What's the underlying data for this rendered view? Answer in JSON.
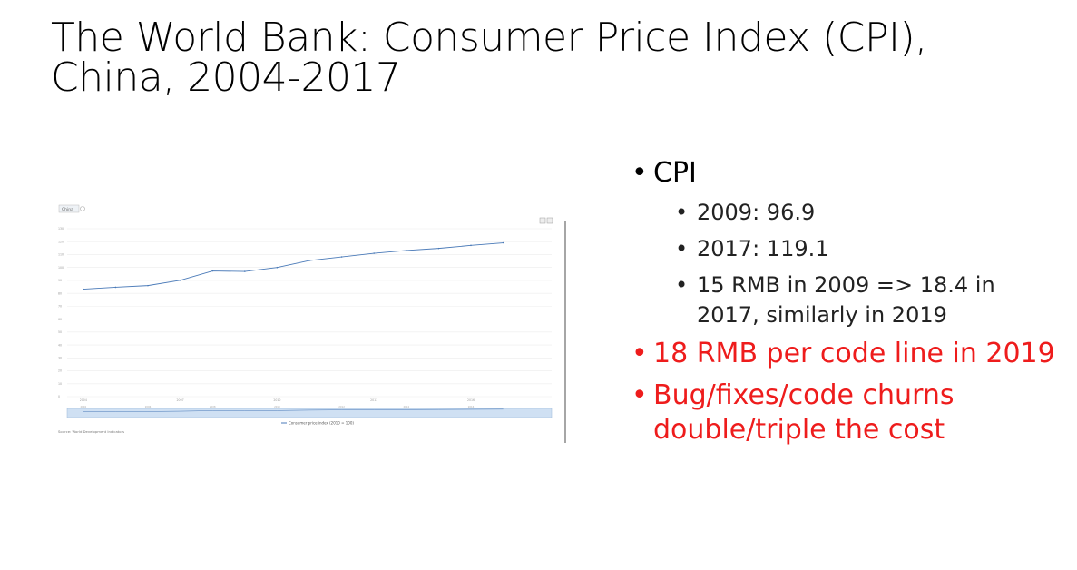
{
  "slide": {
    "title": "The World Bank: Consumer Price Index (CPI), China, 2004-2017"
  },
  "bullets": {
    "cpi": "CPI",
    "sub": [
      "2009: 96.9",
      "2017: 119.1",
      "15 RMB in 2009 => 18.4 in 2017, similarly in 2019"
    ],
    "cost_per_line": "18 RMB per code line in 2019",
    "bugfix_cost": "Bug/fixes/code churns double/triple the cost"
  },
  "colors": {
    "accent_red": "#ee1c1c",
    "series_line": "#4a7ab8",
    "navigator_fill": "#cfe0f3"
  },
  "chart_data": {
    "type": "line",
    "title": "",
    "xlabel": "",
    "ylabel": "",
    "x": [
      2004,
      2005,
      2006,
      2007,
      2008,
      2009,
      2010,
      2011,
      2012,
      2013,
      2014,
      2015,
      2016,
      2017
    ],
    "series": [
      {
        "name": "Consumer price index (2010 = 100)",
        "values": [
          83.2,
          84.7,
          86.0,
          90.1,
          97.3,
          96.9,
          100.0,
          105.4,
          108.2,
          111.0,
          113.2,
          114.8,
          117.1,
          119.1
        ]
      }
    ],
    "ylim": [
      0,
      130
    ],
    "grid": true,
    "legend": "bottom-center",
    "country_selector": "China",
    "source": "Source: World Development Indicators"
  }
}
